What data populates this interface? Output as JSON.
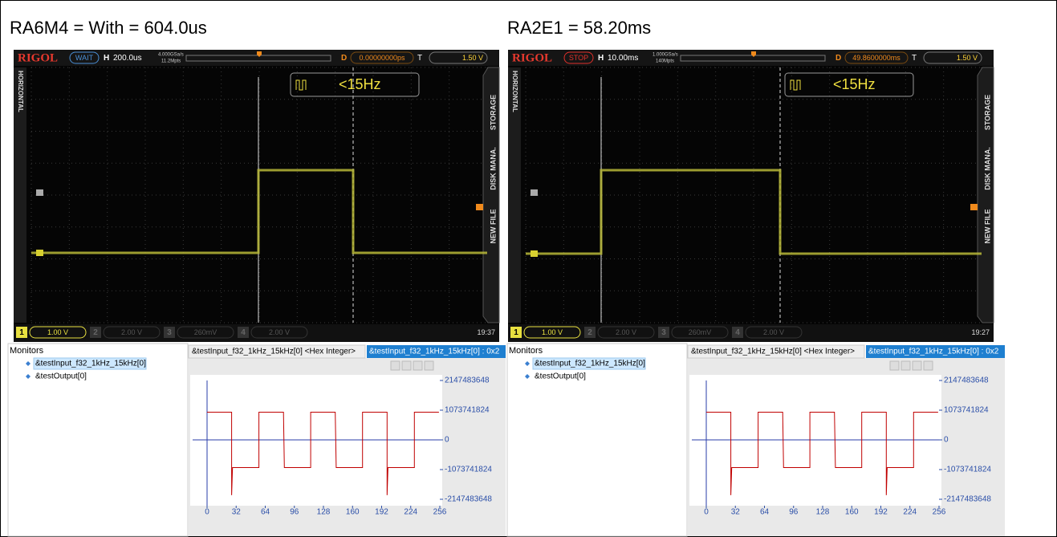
{
  "panels": [
    {
      "title": "RA6M4 = With = 604.0us",
      "scope": {
        "brand": "RIGOL",
        "status": "WAIT",
        "status_color": "#4a8fd6",
        "h_label": "H",
        "timebase": "200.0us",
        "sample_rate": "4.000GSa/s",
        "points": "11.2Mpts",
        "d_label": "D",
        "delay": "0.00000000ps",
        "t_label": "T",
        "trigger_level": "1.50 V",
        "frequency": "<15Hz",
        "side_left": "HORIZONTAL",
        "side_right": [
          "STORAGE",
          "DISK MANA.",
          "NEW FILE"
        ],
        "channels": [
          {
            "num": "1",
            "scale": "1.00 V"
          },
          {
            "num": "2",
            "scale": "2.00 V"
          },
          {
            "num": "3",
            "scale": "260mV"
          },
          {
            "num": "4",
            "scale": "2.00 V"
          }
        ],
        "time": "19:37"
      },
      "monitor": {
        "heading": "Monitors",
        "items": [
          "&testInput_f32_1kHz_15kHz[0]",
          "&testOutput[0]"
        ],
        "tabs": [
          "&testInput_f32_1kHz_15kHz[0] <Hex Integer>",
          "&testInput_f32_1kHz_15kHz[0] : 0x2"
        ],
        "plot": {
          "type": "line",
          "color": "#c00000",
          "xlim": [
            0,
            256
          ],
          "ylim": [
            -2147483648,
            2147483648
          ],
          "xticks": [
            0,
            32,
            64,
            96,
            128,
            160,
            192,
            224,
            256
          ],
          "yticks": [
            2147483648,
            1073741824,
            0,
            -1073741824,
            -2147483648
          ],
          "x": [
            0,
            27,
            27,
            28,
            57,
            57,
            84,
            85,
            114,
            114,
            141,
            142,
            171,
            171,
            198,
            198,
            199,
            228,
            228,
            255
          ],
          "values": [
            1000000000,
            1000000000,
            -2000000000,
            -1000000000,
            -1000000000,
            1000000000,
            1000000000,
            -1000000000,
            -1000000000,
            1000000000,
            1000000000,
            -1000000000,
            -1000000000,
            1000000000,
            1000000000,
            -2000000000,
            -1000000000,
            -1000000000,
            1000000000,
            1000000000
          ]
        }
      }
    },
    {
      "title": "RA2E1 = 58.20ms",
      "scope": {
        "brand": "RIGOL",
        "status": "STOP",
        "status_color": "#e0302a",
        "h_label": "H",
        "timebase": "10.00ms",
        "sample_rate": "1.000GSa/s",
        "points": "140Mpts",
        "d_label": "D",
        "delay": "49.8600000ms",
        "t_label": "T",
        "trigger_level": "1.50 V",
        "frequency": "<15Hz",
        "side_left": "HORIZONTAL",
        "side_right": [
          "STORAGE",
          "DISK MANA.",
          "NEW FILE"
        ],
        "channels": [
          {
            "num": "1",
            "scale": "1.00 V"
          },
          {
            "num": "2",
            "scale": "2.00 V"
          },
          {
            "num": "3",
            "scale": "260mV"
          },
          {
            "num": "4",
            "scale": "2.00 V"
          }
        ],
        "time": "19:27"
      },
      "monitor": {
        "heading": "Monitors",
        "items": [
          "&testInput_f32_1kHz_15kHz[0]",
          "&testOutput[0]"
        ],
        "tabs": [
          "&testInput_f32_1kHz_15kHz[0] <Hex Integer>",
          "&testInput_f32_1kHz_15kHz[0] : 0x2"
        ],
        "plot": {
          "type": "line",
          "color": "#c00000",
          "xlim": [
            0,
            256
          ],
          "ylim": [
            -2147483648,
            2147483648
          ],
          "xticks": [
            0,
            32,
            64,
            96,
            128,
            160,
            192,
            224,
            256
          ],
          "yticks": [
            2147483648,
            1073741824,
            0,
            -1073741824,
            -2147483648
          ],
          "x": [
            0,
            27,
            27,
            28,
            57,
            57,
            84,
            85,
            114,
            114,
            141,
            142,
            171,
            171,
            198,
            198,
            199,
            228,
            228,
            255
          ],
          "values": [
            1000000000,
            1000000000,
            -2000000000,
            -1000000000,
            -1000000000,
            1000000000,
            1000000000,
            -1000000000,
            -1000000000,
            1000000000,
            1000000000,
            -1000000000,
            -1000000000,
            1000000000,
            1000000000,
            -2000000000,
            -1000000000,
            -1000000000,
            1000000000,
            1000000000
          ]
        }
      }
    }
  ]
}
